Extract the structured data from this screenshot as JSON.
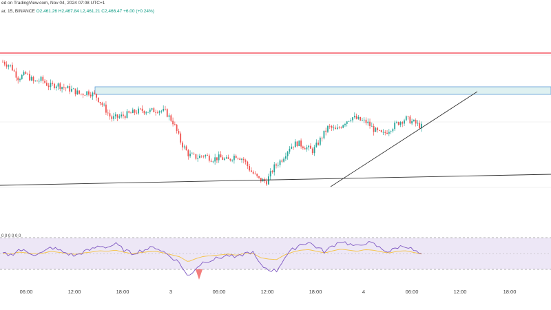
{
  "header": {
    "line1": "ed on TradingView.com, Nov 04, 2024 07:08 UTC+1",
    "line2_prefix": "ar, 15, BINANCE",
    "ohlc": "O2,461.26 H2,467.84 L2,461.21 C2,466.47 +6.00 (+0.24%)"
  },
  "indicator_label": "0 0 0 0 0 0",
  "colors": {
    "up": "#26a69a",
    "down": "#ef5350",
    "resistance": "#f23645",
    "zone_fill": "#dff1f1",
    "zone_border": "#5b9bd5",
    "trendline": "#333333",
    "rsi_line": "#7e57c2",
    "rsi_ma": "#f5c242",
    "rsi_band": "#ede7f6"
  },
  "chart_data": {
    "type": "candlestick",
    "time_axis_labels": [
      "06:00",
      "12:00",
      "18:00",
      "3",
      "06:00",
      "12:00",
      "18:00",
      "4",
      "06:00",
      "12:00",
      "18:00"
    ],
    "price_series_relative": [
      10,
      9.5,
      8,
      8.5,
      7.5,
      7.8,
      7,
      7.2,
      6.8,
      6.5,
      6,
      6.3,
      5.8,
      4.5,
      3,
      3.2,
      3.5,
      3.8,
      4,
      3.9,
      4.1,
      3.8,
      2.5,
      0,
      -1.5,
      -1.8,
      -1.5,
      -2,
      -1.8,
      -2.2,
      -1.5,
      -2,
      -3.5,
      -4.5,
      -4.8,
      -3,
      -2,
      -0.5,
      0,
      -0.5,
      -1,
      0.5,
      2,
      1.5,
      2.5,
      3.2,
      2.8,
      2.5,
      1.5,
      1,
      1.8,
      2.5,
      3,
      2.5,
      2
    ],
    "rsi_series": [
      50,
      48,
      55,
      52,
      49,
      51,
      58,
      54,
      50,
      47,
      52,
      55,
      60,
      58,
      62,
      55,
      50,
      53,
      56,
      58,
      52,
      45,
      38,
      20,
      32,
      40,
      42,
      45,
      48,
      44,
      50,
      52,
      35,
      30,
      28,
      45,
      55,
      62,
      64,
      58,
      52,
      60,
      66,
      62,
      58,
      64,
      62,
      56,
      52,
      58,
      60,
      54,
      48
    ],
    "annotations": [
      "horizontal resistance line",
      "supply zone rectangle",
      "ascending trendline",
      "support trendline"
    ]
  }
}
